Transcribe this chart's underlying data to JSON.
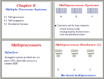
{
  "bg_color": "#d0cfc8",
  "slide_bg": "#ffffff",
  "red_color": "#dd3333",
  "blue_color": "#3355cc",
  "dark_color": "#222244",
  "slides": [
    {
      "title": "Chapter 8",
      "subtitle": "Multiple Processor Systems",
      "bullets": [
        "8.1  Multiprocessors",
        "8.2  Multicomputers",
        "8.3  Distributed Systems"
      ]
    },
    {
      "title": "Multiprocessor Systems",
      "diagram_labels": [
        "a)",
        "b)",
        "c)"
      ],
      "bullets": [
        "●  Commonly used for large computers",
        "        - shared memory model",
        "        - message passing multiprocessors",
        "        - wide area distributed system"
      ]
    },
    {
      "title": "Multiprocessors",
      "def_label": "Definition:",
      "body_lines": [
        "A computer system in which two (or",
        "more) CPUs share full access to a",
        "common RAM"
      ]
    },
    {
      "title": "Multiprocessor Hardware (1)",
      "diagram_labels": [
        "1)",
        "2)",
        "3)"
      ],
      "footer": "Bus-based multiprocessors"
    }
  ]
}
